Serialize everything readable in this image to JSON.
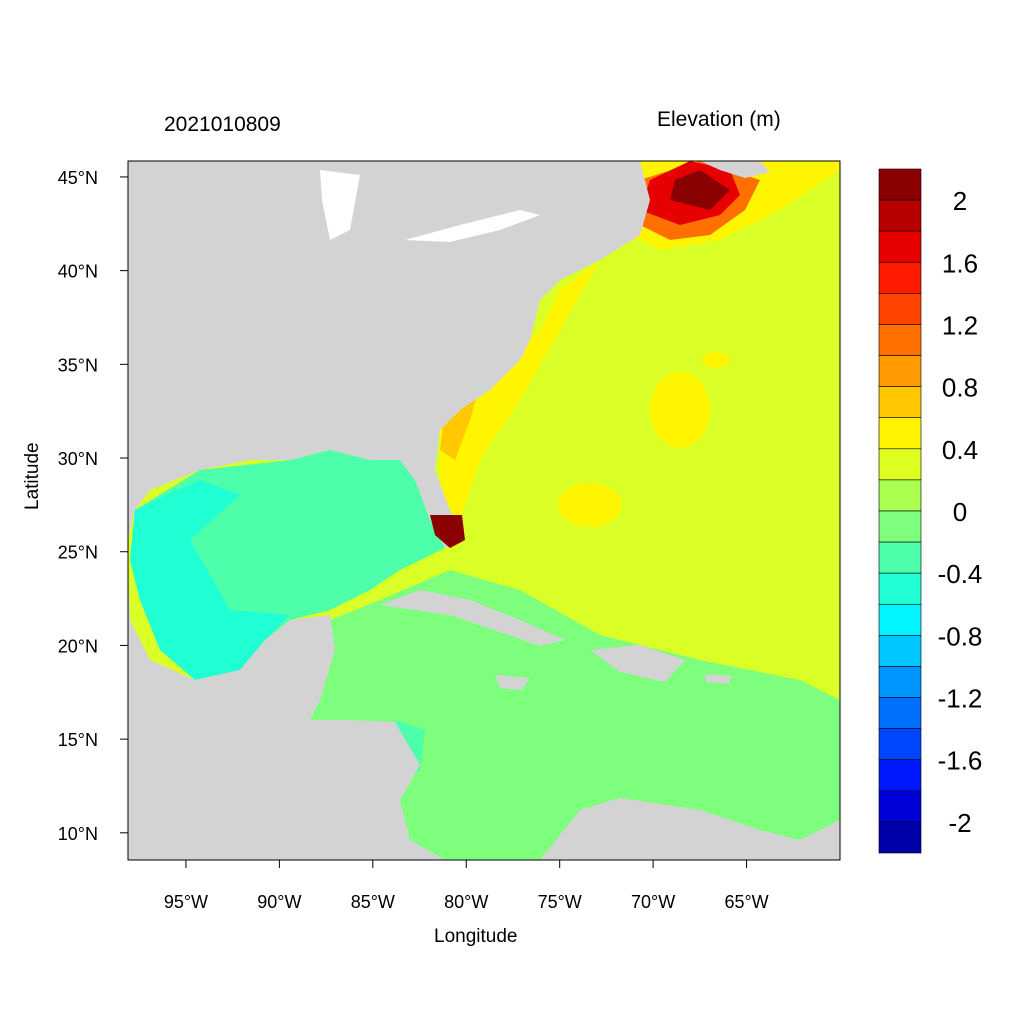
{
  "header": {
    "date": "2021010809",
    "variable": "Elevation (m)"
  },
  "chart_data": {
    "type": "heatmap",
    "title": "2021010809",
    "colorbar_title": "Elevation (m)",
    "xlabel": "Longitude",
    "ylabel": "Latitude",
    "xlim": [
      -98.1,
      -60.0
    ],
    "ylim": [
      8.55,
      45.85
    ],
    "x_ticks": [
      -95,
      -90,
      -85,
      -80,
      -75,
      -70,
      -65
    ],
    "x_tick_labels": [
      "95°W",
      "90°W",
      "85°W",
      "80°W",
      "75°W",
      "70°W",
      "65°W"
    ],
    "y_ticks": [
      45,
      40,
      35,
      30,
      25,
      20,
      15,
      10
    ],
    "y_tick_labels": [
      "45°N",
      "40°N",
      "35°N",
      "30°N",
      "25°N",
      "20°N",
      "15°N",
      "10°N"
    ],
    "colorbar": {
      "levels": [
        2.2,
        2.0,
        1.8,
        1.6,
        1.4,
        1.2,
        1.0,
        0.8,
        0.6,
        0.4,
        0.2,
        0,
        -0.2,
        -0.4,
        -0.6,
        -0.8,
        -1.0,
        -1.2,
        -1.4,
        -1.6,
        -1.8,
        -2.0,
        -2.2
      ],
      "labels": [
        "2",
        "1.6",
        "1.2",
        "0.8",
        "0.4",
        "0",
        "-0.4",
        "-0.8",
        "-1.2",
        "-1.6",
        "-2"
      ],
      "label_values": [
        2,
        1.6,
        1.2,
        0.8,
        0.4,
        0,
        -0.4,
        -0.8,
        -1.2,
        -1.6,
        -2
      ],
      "colors": [
        "#8b0000",
        "#b80000",
        "#e60000",
        "#ff1a00",
        "#ff4500",
        "#ff7000",
        "#ff9a00",
        "#ffc800",
        "#fff500",
        "#dcff20",
        "#aaff50",
        "#7dff7d",
        "#4dffaa",
        "#20ffd4",
        "#00f5ff",
        "#00c8ff",
        "#0096ff",
        "#0070ff",
        "#0046ff",
        "#0018ff",
        "#0000d8",
        "#0000aa"
      ]
    },
    "land_color": "#d3d3d3",
    "grid": false
  }
}
